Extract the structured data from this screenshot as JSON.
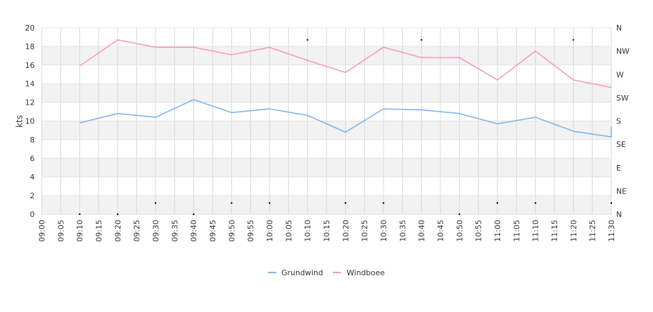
{
  "chart_data": {
    "type": "line",
    "title": "",
    "xlabel": "",
    "ylabel": "kts",
    "ylim": [
      0,
      20
    ],
    "yticks": [
      0,
      2,
      4,
      6,
      8,
      10,
      12,
      14,
      16,
      18,
      20
    ],
    "y2ticks": [
      "N",
      "NE",
      "E",
      "SE",
      "S",
      "SW",
      "W",
      "NW",
      "N"
    ],
    "x_ticks": [
      "09:00",
      "09:05",
      "09:10",
      "09:15",
      "09:20",
      "09:25",
      "09:30",
      "09:35",
      "09:40",
      "09:45",
      "09:50",
      "09:55",
      "10:00",
      "10:05",
      "10:10",
      "10:15",
      "10:20",
      "10:25",
      "10:30",
      "10:35",
      "10:40",
      "10:45",
      "10:50",
      "10:55",
      "11:00",
      "11:05",
      "11:10",
      "11:15",
      "11:20",
      "11:25",
      "11:30"
    ],
    "grid": true,
    "legend_position": "bottom",
    "series": [
      {
        "name": "Grundwind",
        "color": "#7cb5ec",
        "x": [
          "09:10",
          "09:20",
          "09:30",
          "09:40",
          "09:50",
          "10:00",
          "10:10",
          "10:20",
          "10:30",
          "10:40",
          "10:50",
          "11:00",
          "11:10",
          "11:20",
          "11:30",
          "11:30"
        ],
        "values": [
          9.8,
          10.8,
          10.4,
          12.3,
          10.9,
          11.3,
          10.6,
          8.8,
          11.3,
          11.2,
          10.8,
          9.7,
          10.4,
          8.9,
          8.3,
          9.4
        ]
      },
      {
        "name": "Windboee",
        "color": "#f49ac1",
        "x": [
          "09:10",
          "09:20",
          "09:30",
          "09:40",
          "09:50",
          "10:00",
          "10:10",
          "10:20",
          "10:30",
          "10:40",
          "10:50",
          "11:00",
          "11:10",
          "11:20",
          "11:30"
        ],
        "values": [
          15.9,
          18.7,
          17.9,
          17.9,
          17.1,
          17.9,
          16.5,
          15.2,
          17.9,
          16.8,
          16.8,
          14.4,
          17.5,
          14.4,
          13.6
        ]
      }
    ],
    "direction_markers": {
      "x": [
        "09:10",
        "09:20",
        "09:30",
        "09:40",
        "09:50",
        "10:00",
        "10:10",
        "10:20",
        "10:30",
        "10:40",
        "10:50",
        "11:00",
        "11:10",
        "11:20",
        "11:30"
      ],
      "values": [
        0,
        0,
        1.2,
        0,
        1.2,
        1.2,
        18.7,
        1.2,
        1.2,
        18.7,
        0,
        1.2,
        1.2,
        18.7,
        1.2
      ]
    }
  }
}
